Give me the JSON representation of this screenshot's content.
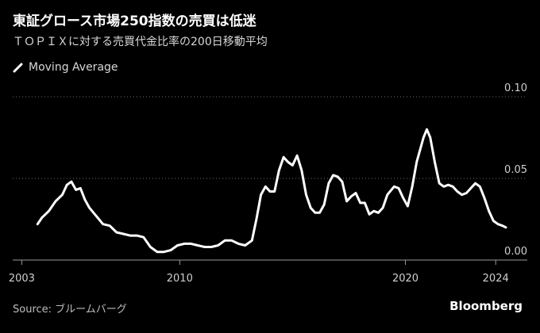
{
  "title": "東証グロース市場250指数の売買は低迷",
  "subtitle": "ＴＯＰＩＸに対する売買代金比率の200日移動平均",
  "legend": [
    {
      "name": "Moving Average",
      "color": "#ffffff"
    }
  ],
  "source": "Source: ブルームバーグ",
  "brand": "Bloomberg",
  "chart_data": {
    "type": "line",
    "xlabel": "",
    "ylabel": "",
    "xlim": [
      2002.6,
      2025.4
    ],
    "ylim": [
      0,
      0.1
    ],
    "y_ticks": [
      "0.00",
      "0.05",
      "0.10"
    ],
    "y_tick_values": [
      0,
      0.05,
      0.1
    ],
    "x_ticks": [
      "2003",
      "2010",
      "2020",
      "2024"
    ],
    "x_tick_values": [
      2003,
      2010,
      2020,
      2024
    ],
    "grid": "horizontal dotted",
    "legend_position": "top-left",
    "series": [
      {
        "name": "Moving Average",
        "color": "#ffffff",
        "points": [
          [
            2003.7,
            0.022
          ],
          [
            2003.9,
            0.026
          ],
          [
            2004.2,
            0.03
          ],
          [
            2004.5,
            0.036
          ],
          [
            2004.8,
            0.04
          ],
          [
            2005.0,
            0.046
          ],
          [
            2005.2,
            0.048
          ],
          [
            2005.4,
            0.043
          ],
          [
            2005.6,
            0.044
          ],
          [
            2005.8,
            0.037
          ],
          [
            2006.0,
            0.032
          ],
          [
            2006.3,
            0.027
          ],
          [
            2006.6,
            0.022
          ],
          [
            2006.9,
            0.021
          ],
          [
            2007.2,
            0.017
          ],
          [
            2007.5,
            0.016
          ],
          [
            2007.8,
            0.015
          ],
          [
            2008.1,
            0.015
          ],
          [
            2008.4,
            0.014
          ],
          [
            2008.7,
            0.008
          ],
          [
            2009.0,
            0.005
          ],
          [
            2009.3,
            0.005
          ],
          [
            2009.6,
            0.006
          ],
          [
            2009.9,
            0.009
          ],
          [
            2010.2,
            0.01
          ],
          [
            2010.5,
            0.01
          ],
          [
            2010.8,
            0.009
          ],
          [
            2011.1,
            0.008
          ],
          [
            2011.4,
            0.008
          ],
          [
            2011.7,
            0.009
          ],
          [
            2012.0,
            0.012
          ],
          [
            2012.3,
            0.012
          ],
          [
            2012.6,
            0.01
          ],
          [
            2012.9,
            0.009
          ],
          [
            2013.2,
            0.012
          ],
          [
            2013.4,
            0.025
          ],
          [
            2013.6,
            0.04
          ],
          [
            2013.8,
            0.045
          ],
          [
            2014.0,
            0.042
          ],
          [
            2014.2,
            0.042
          ],
          [
            2014.4,
            0.055
          ],
          [
            2014.6,
            0.063
          ],
          [
            2014.8,
            0.06
          ],
          [
            2015.0,
            0.058
          ],
          [
            2015.2,
            0.064
          ],
          [
            2015.4,
            0.055
          ],
          [
            2015.6,
            0.04
          ],
          [
            2015.8,
            0.032
          ],
          [
            2016.0,
            0.029
          ],
          [
            2016.2,
            0.029
          ],
          [
            2016.4,
            0.034
          ],
          [
            2016.6,
            0.047
          ],
          [
            2016.8,
            0.052
          ],
          [
            2017.0,
            0.051
          ],
          [
            2017.2,
            0.048
          ],
          [
            2017.4,
            0.036
          ],
          [
            2017.6,
            0.039
          ],
          [
            2017.8,
            0.041
          ],
          [
            2018.0,
            0.035
          ],
          [
            2018.2,
            0.035
          ],
          [
            2018.4,
            0.028
          ],
          [
            2018.6,
            0.03
          ],
          [
            2018.8,
            0.029
          ],
          [
            2019.0,
            0.032
          ],
          [
            2019.2,
            0.04
          ],
          [
            2019.5,
            0.045
          ],
          [
            2019.7,
            0.044
          ],
          [
            2019.9,
            0.038
          ],
          [
            2020.1,
            0.033
          ],
          [
            2020.3,
            0.045
          ],
          [
            2020.5,
            0.06
          ],
          [
            2020.8,
            0.075
          ],
          [
            2020.95,
            0.08
          ],
          [
            2021.1,
            0.075
          ],
          [
            2021.3,
            0.06
          ],
          [
            2021.5,
            0.047
          ],
          [
            2021.7,
            0.045
          ],
          [
            2021.9,
            0.046
          ],
          [
            2022.1,
            0.045
          ],
          [
            2022.3,
            0.042
          ],
          [
            2022.5,
            0.04
          ],
          [
            2022.7,
            0.041
          ],
          [
            2022.9,
            0.044
          ],
          [
            2023.1,
            0.047
          ],
          [
            2023.3,
            0.045
          ],
          [
            2023.5,
            0.038
          ],
          [
            2023.7,
            0.03
          ],
          [
            2023.9,
            0.024
          ],
          [
            2024.1,
            0.022
          ],
          [
            2024.3,
            0.021
          ],
          [
            2024.45,
            0.02
          ]
        ]
      }
    ]
  }
}
